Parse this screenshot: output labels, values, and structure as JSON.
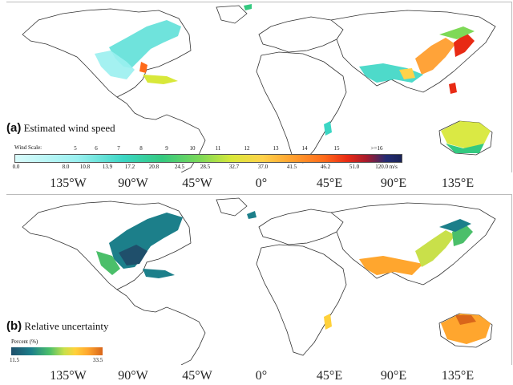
{
  "panel_a": {
    "letter": "(a)",
    "title": "Estimated wind speed",
    "legend": {
      "scale_title": "Wind Scale:",
      "levels": [
        "5",
        "6",
        "7",
        "8",
        "9",
        "10",
        "11",
        "12",
        "13",
        "14",
        "15",
        ">=16"
      ],
      "speeds": [
        "0.0",
        "8.0",
        "10.8",
        "13.9",
        "17.2",
        "20.8",
        "24.5",
        "28.5",
        "32.7",
        "37.0",
        "41.5",
        "46.2",
        "51.0",
        "120.0 m/s"
      ]
    }
  },
  "panel_b": {
    "letter": "(b)",
    "title": "Relative uncertainty",
    "legend": {
      "title": "Percent (%)",
      "min": "11.5",
      "max": "33.5"
    }
  },
  "longitude_labels": [
    "135°W",
    "90°W",
    "45°W",
    "0°",
    "45°E",
    "90°E",
    "135°E"
  ],
  "colors": {
    "wind_low": "#9af0f0",
    "wind_mid": "#d8e83a",
    "wind_high": "#e82a14",
    "wind_max": "#1a2356",
    "unc_low": "#1f4f6b",
    "unc_mid": "#4bbf6a",
    "unc_high": "#ffa62e"
  }
}
